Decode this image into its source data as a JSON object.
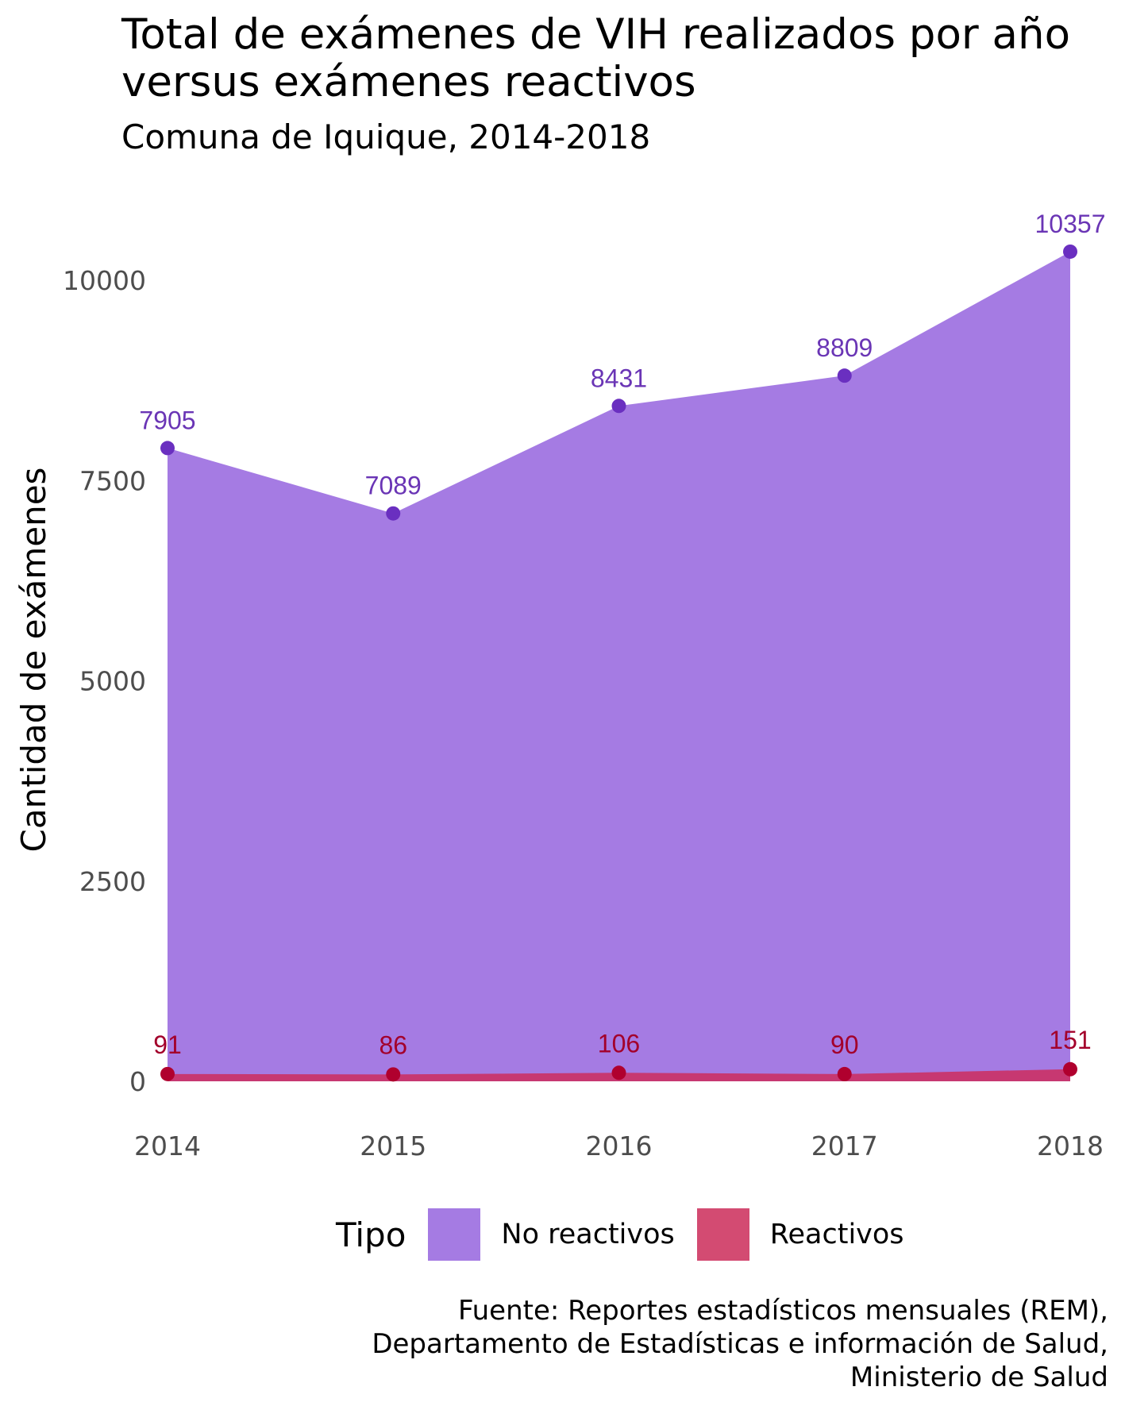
{
  "title": "Total de exámenes de VIH realizados por año versus exámenes reactivos",
  "subtitle": "Comuna de Iquique, 2014-2018",
  "caption": {
    "line1": "Fuente: Reportes estadísticos mensuales (REM),",
    "line2": "Departamento de Estadísticas e información de Salud,",
    "line3": "Ministerio de Salud"
  },
  "legend": {
    "title": "Tipo",
    "items": [
      {
        "label": "No reactivos",
        "color": "#a57be3"
      },
      {
        "label": "Reactivos",
        "color": "#d34b72"
      }
    ]
  },
  "chart_data": {
    "type": "area",
    "title": "Total de exámenes de VIH realizados por año versus exámenes reactivos",
    "subtitle": "Comuna de Iquique, 2014-2018",
    "xlabel": "",
    "ylabel": "Cantidad de exámenes",
    "x": [
      2014,
      2015,
      2016,
      2017,
      2018
    ],
    "x_ticks": [
      "2014",
      "2015",
      "2016",
      "2017",
      "2018"
    ],
    "y_ticks": [
      "0",
      "2500",
      "5000",
      "7500",
      "10000"
    ],
    "y_tick_values": [
      0,
      2500,
      5000,
      7500,
      10000
    ],
    "ylim": [
      -120,
      10900
    ],
    "grid": false,
    "legend_position": "bottom",
    "series": [
      {
        "name": "No reactivos",
        "values": [
          7905,
          7089,
          8431,
          8809,
          10357
        ],
        "fill": "#a57be3",
        "point_color": "#6a2fc0",
        "label_color": "#6a35b5"
      },
      {
        "name": "Reactivos",
        "values": [
          91,
          86,
          106,
          90,
          151
        ],
        "fill": "#c8356a",
        "point_color": "#b0002e",
        "label_color": "#a3002b"
      }
    ]
  }
}
